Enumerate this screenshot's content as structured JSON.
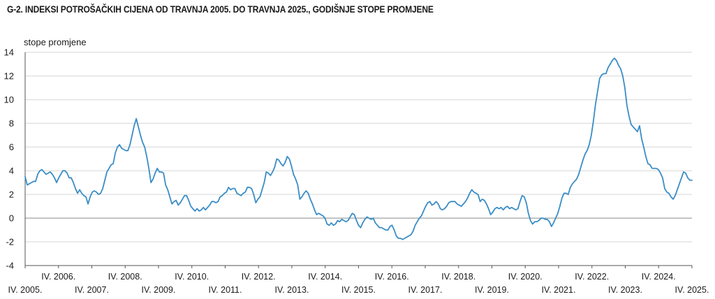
{
  "chart_data": {
    "type": "line",
    "title": "G-2.  INDEKSI POTROŠAČKIH CIJENA OD TRAVNJA 2005. DO TRAVNJA 2025., GODIŠNJE STOPE PROMJENE",
    "ylabel": "stope promjene",
    "xlabel": "",
    "ylim": [
      -4,
      14
    ],
    "yticks": [
      -4,
      -2,
      0,
      2,
      4,
      6,
      8,
      10,
      12,
      14
    ],
    "grid": true,
    "legend": "none",
    "line_color": "#3a8dc6",
    "x_tick_labels": [
      "IV. 2005.",
      "IV. 2006.",
      "IV. 2007.",
      "IV. 2008.",
      "IV. 2009.",
      "IV. 2010.",
      "IV. 2011.",
      "IV. 2012.",
      "IV. 2013.",
      "IV. 2014.",
      "IV. 2015.",
      "IV. 2016.",
      "IV. 2017.",
      "IV. 2018.",
      "IV. 2019.",
      "IV. 2020.",
      "IV. 2021.",
      "IV. 2022.",
      "IV. 2023.",
      "IV. 2024.",
      "IV. 2025."
    ],
    "x_start": "2005-04",
    "x_end": "2025-04",
    "series": [
      {
        "values": [
          3.5,
          2.8,
          2.9,
          3.0,
          3.1,
          3.1,
          3.7,
          4.0,
          4.1,
          3.9,
          3.7,
          3.8,
          3.9,
          3.7,
          3.4,
          3.0,
          3.4,
          3.7,
          4.0,
          4.0,
          3.8,
          3.4,
          3.4,
          3.0,
          2.5,
          2.1,
          2.4,
          2.1,
          1.9,
          1.8,
          1.2,
          1.8,
          2.2,
          2.3,
          2.2,
          2.0,
          2.1,
          2.5,
          3.2,
          3.9,
          4.2,
          4.5,
          4.6,
          5.5,
          6.0,
          6.2,
          5.9,
          5.8,
          5.7,
          5.7,
          6.2,
          7.0,
          7.8,
          8.4,
          7.7,
          7.0,
          6.4,
          6.0,
          5.2,
          4.2,
          3.0,
          3.3,
          3.8,
          4.2,
          3.9,
          3.9,
          3.8,
          2.8,
          2.4,
          1.8,
          1.2,
          1.4,
          1.5,
          1.1,
          1.3,
          1.6,
          1.9,
          1.9,
          1.5,
          1.0,
          0.8,
          0.6,
          0.8,
          0.6,
          0.7,
          0.9,
          0.7,
          0.9,
          1.1,
          1.4,
          1.4,
          1.3,
          1.4,
          1.8,
          1.9,
          2.1,
          2.2,
          2.6,
          2.4,
          2.5,
          2.5,
          2.1,
          2.0,
          1.9,
          2.1,
          2.2,
          2.6,
          2.6,
          2.5,
          2.0,
          1.3,
          1.6,
          1.8,
          2.4,
          3.0,
          3.9,
          3.8,
          3.6,
          3.9,
          4.3,
          5.0,
          4.9,
          4.6,
          4.4,
          4.7,
          5.2,
          5.0,
          4.4,
          3.7,
          3.3,
          2.8,
          1.6,
          1.8,
          2.1,
          2.3,
          2.1,
          1.6,
          1.2,
          0.7,
          0.3,
          0.4,
          0.3,
          0.2,
          0.0,
          -0.5,
          -0.6,
          -0.4,
          -0.6,
          -0.5,
          -0.2,
          -0.3,
          -0.1,
          -0.2,
          -0.3,
          -0.2,
          0.1,
          0.4,
          0.3,
          -0.2,
          -0.6,
          -0.8,
          -0.4,
          -0.1,
          0.1,
          0.0,
          -0.1,
          0.0,
          -0.4,
          -0.6,
          -0.8,
          -0.8,
          -0.9,
          -1.0,
          -1.0,
          -0.7,
          -0.6,
          -1.0,
          -1.5,
          -1.7,
          -1.7,
          -1.8,
          -1.7,
          -1.6,
          -1.5,
          -1.4,
          -1.1,
          -0.6,
          -0.3,
          0.0,
          0.2,
          0.6,
          1.0,
          1.3,
          1.4,
          1.1,
          1.2,
          1.4,
          1.2,
          0.8,
          0.7,
          0.8,
          1.0,
          1.3,
          1.4,
          1.4,
          1.4,
          1.2,
          1.1,
          1.0,
          1.2,
          1.4,
          1.7,
          2.1,
          2.4,
          2.2,
          2.1,
          2.0,
          1.4,
          1.6,
          1.5,
          1.2,
          0.8,
          0.3,
          0.5,
          0.8,
          0.9,
          0.8,
          0.9,
          0.7,
          0.9,
          1.0,
          0.8,
          0.9,
          0.8,
          0.7,
          0.8,
          1.4,
          1.9,
          1.8,
          1.3,
          0.4,
          -0.2,
          -0.5,
          -0.3,
          -0.3,
          -0.2,
          0.0,
          0.0,
          -0.1,
          -0.1,
          -0.3,
          -0.7,
          -0.4,
          0.0,
          0.4,
          1.0,
          1.7,
          2.1,
          2.1,
          2.0,
          2.6,
          2.9,
          3.1,
          3.3,
          3.7,
          4.3,
          4.9,
          5.4,
          5.7,
          6.2,
          7.0,
          8.2,
          9.6,
          10.7,
          11.8,
          12.1,
          12.2,
          12.2,
          12.7,
          13.0,
          13.3,
          13.5,
          13.3,
          12.9,
          12.6,
          12.0,
          11.0,
          9.5,
          8.6,
          7.9,
          7.7,
          7.5,
          7.3,
          7.8,
          6.7,
          6.0,
          5.2,
          4.6,
          4.5,
          4.2,
          4.2,
          4.2,
          4.1,
          3.8,
          3.4,
          2.5,
          2.2,
          2.1,
          1.8,
          1.6,
          1.9,
          2.4,
          2.9,
          3.4,
          3.9,
          3.8,
          3.4,
          3.2,
          3.2
        ]
      }
    ]
  }
}
